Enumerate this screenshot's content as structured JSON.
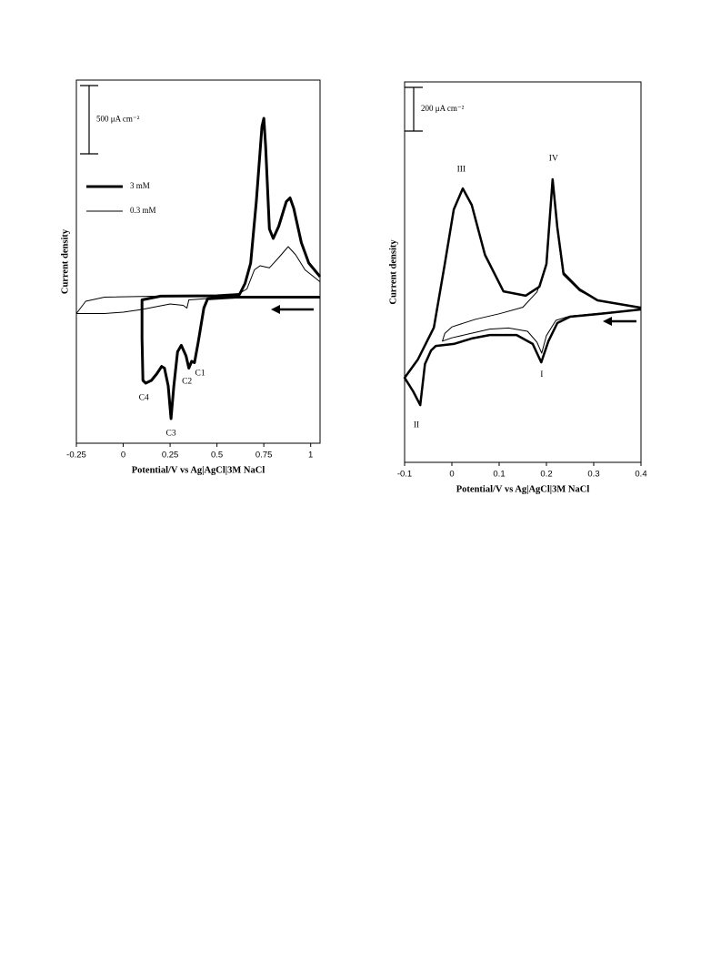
{
  "chart_data": [
    {
      "type": "line",
      "xlabel": "Potential/V vs Ag|AgCl|3M NaCl",
      "ylabel": "Current density",
      "xlim": [
        -0.25,
        1.05
      ],
      "xticks": [
        -0.25,
        0,
        0.25,
        0.5,
        0.75,
        1
      ],
      "ylim": [
        -1070,
        1590
      ],
      "scale_bar": {
        "value": 500,
        "label": "500 μA cm⁻²"
      },
      "legend": "upper left",
      "annotations": [
        "C1",
        "C2",
        "C3",
        "C4"
      ],
      "series": [
        {
          "name": "3 mM",
          "color": "#000000",
          "width": 3,
          "x": [
            1.05,
            0.6,
            0.45,
            0.43,
            0.4,
            0.38,
            0.365,
            0.35,
            0.335,
            0.31,
            0.29,
            0.27,
            0.255,
            0.24,
            0.22,
            0.205,
            0.18,
            0.15,
            0.12,
            0.105,
            0.1,
            0.1,
            0.2,
            0.5,
            0.62,
            0.65,
            0.68,
            0.71,
            0.74,
            0.75,
            0.76,
            0.78,
            0.8,
            0.83,
            0.87,
            0.89,
            0.91,
            0.95,
            0.99,
            1.05
          ],
          "values": [
            0,
            0,
            -13,
            -80,
            -330,
            -480,
            -470,
            -520,
            -430,
            -353,
            -400,
            -650,
            -890,
            -650,
            -520,
            -507,
            -560,
            -610,
            -630,
            -610,
            -300,
            -20,
            7,
            10,
            20,
            100,
            250,
            700,
            1250,
            1310,
            1100,
            500,
            430,
            520,
            700,
            727,
            650,
            400,
            250,
            150
          ]
        },
        {
          "name": "0.3 mM",
          "color": "#000000",
          "width": 1,
          "x": [
            1.05,
            0.5,
            0.35,
            0.34,
            0.32,
            0.25,
            0.1,
            0,
            -0.1,
            -0.25,
            -0.2,
            -0.1,
            0.3,
            0.6,
            0.66,
            0.7,
            0.73,
            0.78,
            0.83,
            0.88,
            0.92,
            0.97,
            1.05
          ],
          "values": [
            0,
            -5,
            -20,
            -80,
            -60,
            -50,
            -90,
            -110,
            -120,
            -120,
            -30,
            0,
            10,
            12,
            60,
            200,
            230,
            215,
            290,
            370,
            310,
            200,
            113
          ]
        }
      ]
    },
    {
      "type": "line",
      "xlabel": "Potential/V vs Ag|AgCl|3M NaCl",
      "ylabel": "Current density",
      "xlim": [
        -0.1,
        0.4
      ],
      "xticks": [
        -0.1,
        0,
        0.1,
        0.2,
        0.3,
        0.4
      ],
      "ylim": [
        -700,
        1042
      ],
      "scale_bar": {
        "value": 200,
        "label": "200 μA cm⁻²"
      },
      "annotations": [
        "I",
        "II",
        "III",
        "IV"
      ],
      "series": [
        {
          "color": "#000000",
          "width": 2.5,
          "x": [
            0.4,
            0.308,
            0.25,
            0.223,
            0.204,
            0.189,
            0.171,
            0.137,
            0.08,
            0.042,
            0.004,
            -0.034,
            -0.044,
            -0.057,
            -0.067,
            -0.082,
            -0.1,
            -0.072,
            -0.038,
            -0.015,
            0.004,
            0.023,
            0.042,
            0.07,
            0.109,
            0.156,
            0.185,
            0.2,
            0.213,
            0.223,
            0.236,
            0.27,
            0.308,
            0.4
          ],
          "values": [
            0,
            -21,
            -33,
            -62,
            -146,
            -242,
            -158,
            -117,
            -117,
            -133,
            -158,
            -167,
            -188,
            -250,
            -438,
            -375,
            -313,
            -229,
            -83,
            208,
            458,
            554,
            479,
            250,
            83,
            63,
            104,
            208,
            596,
            375,
            167,
            92,
            42,
            8
          ]
        },
        {
          "color": "#000000",
          "width": 1,
          "x": [
            0.4,
            0.3,
            0.25,
            0.22,
            0.2,
            0.19,
            0.18,
            0.16,
            0.12,
            0.08,
            0.04,
            0,
            -0.02,
            -0.015,
            0,
            0.05,
            0.1,
            0.15,
            0.18,
            0.2,
            0.213,
            0.222,
            0.235,
            0.27,
            0.31,
            0.4
          ],
          "values": [
            0,
            -20,
            -30,
            -50,
            -120,
            -200,
            -150,
            -100,
            -85,
            -90,
            -110,
            -130,
            -145,
            -110,
            -80,
            -45,
            -20,
            10,
            80,
            200,
            580,
            380,
            160,
            85,
            40,
            8
          ]
        }
      ]
    }
  ]
}
